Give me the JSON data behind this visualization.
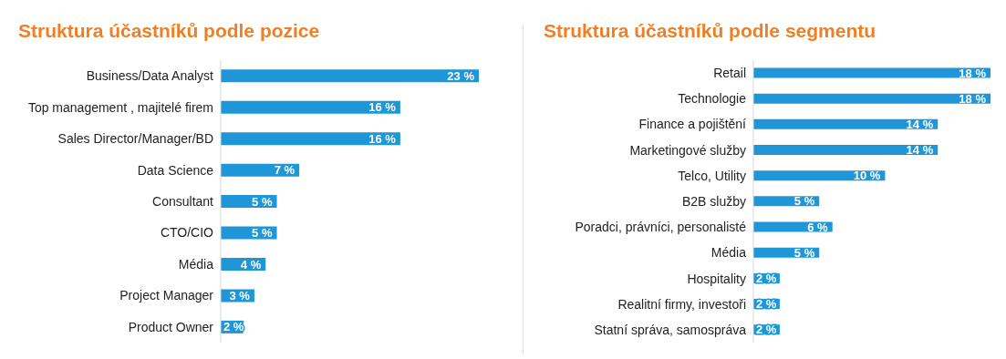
{
  "chart_data": [
    {
      "type": "bar",
      "orientation": "horizontal",
      "title": "Struktura účastníků podle pozice",
      "categories": [
        "Business/Data Analyst",
        "Top management , majitelé firem",
        "Sales Director/Manager/BD",
        "Data Science",
        "Consultant",
        "CTO/CIO",
        "Média",
        "Project Manager",
        "Product Owner"
      ],
      "values": [
        23,
        16,
        16,
        7,
        5,
        5,
        4,
        3,
        2
      ],
      "value_labels": [
        "23 %",
        "16 %",
        "16 %",
        "7 %",
        "5 %",
        "5 %",
        "4 %",
        "3 %",
        "2 %"
      ],
      "color": "#1e96d8"
    },
    {
      "type": "bar",
      "orientation": "horizontal",
      "title": "Struktura účastníků podle segmentu",
      "categories": [
        "Retail",
        "Technologie",
        "Finance a pojištění",
        "Marketingové služby",
        "Telco, Utility",
        "B2B služby",
        "Poradci, právníci, personalisté",
        "Média",
        "Hospitality",
        "Realitní firmy, investoři",
        "Statní správa, samospráva"
      ],
      "values": [
        18,
        18,
        14,
        14,
        10,
        5,
        6,
        5,
        2,
        2,
        2
      ],
      "value_labels": [
        "18 %",
        "18 %",
        "14 %",
        "14 %",
        "10 %",
        "5 %",
        "6 %",
        "5 %",
        "2 %",
        "2 %",
        "2 %"
      ],
      "color": "#1e96d8"
    }
  ]
}
